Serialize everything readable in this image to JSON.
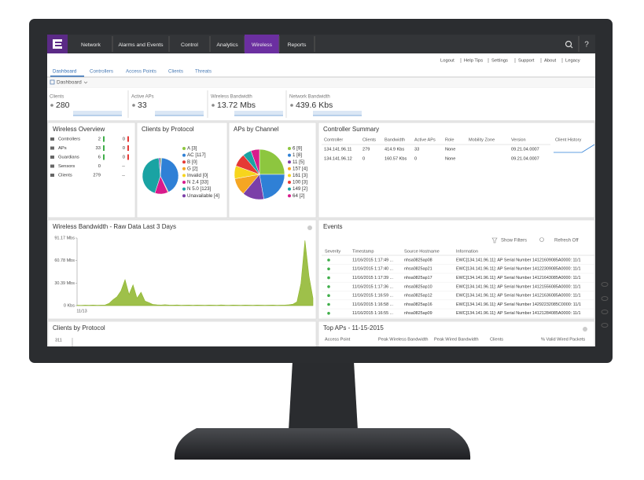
{
  "nav": {
    "items": [
      "Network",
      "Alarms and Events",
      "Control",
      "Analytics",
      "Wireless",
      "Reports"
    ],
    "active": 4,
    "help": "?"
  },
  "links": [
    "Logout",
    "Help Tips",
    "Settings",
    "Support",
    "About",
    "Legacy"
  ],
  "tabs": [
    "Dashboard",
    "Controllers",
    "Access Points",
    "Clients",
    "Threats"
  ],
  "view": "Dashboard",
  "stats": [
    {
      "label": "Clients",
      "value": "280"
    },
    {
      "label": "Active APs",
      "value": "33"
    },
    {
      "label": "Wireless Bandwidth",
      "value": "13.72 Mbs"
    },
    {
      "label": "Network Bandwidth",
      "value": "439.6 Kbs"
    }
  ],
  "wireless_overview": {
    "title": "Wireless Overview",
    "rows": [
      [
        "Controllers",
        "2",
        "0"
      ],
      [
        "APs",
        "33",
        "0"
      ],
      [
        "Guardians",
        "6",
        "0"
      ],
      [
        "Sensors",
        "0",
        "--"
      ],
      [
        "Clients",
        "279",
        "--"
      ]
    ]
  },
  "clients_pie": {
    "title": "Clients by Protocol",
    "slices": [
      {
        "label": "A [3]",
        "value": 3,
        "color": "#8dc63f"
      },
      {
        "label": "AC [117]",
        "value": 117,
        "color": "#2f80d6"
      },
      {
        "label": "B [0]",
        "value": 0,
        "color": "#e53935"
      },
      {
        "label": "G [2]",
        "value": 2,
        "color": "#f5a623"
      },
      {
        "label": "Invalid [0]",
        "value": 0,
        "color": "#f7d51d"
      },
      {
        "label": "N 2.4 [33]",
        "value": 33,
        "color": "#d81b8c"
      },
      {
        "label": "N 5.0 [123]",
        "value": 123,
        "color": "#1aa3a3"
      },
      {
        "label": "Unavailable [4]",
        "value": 4,
        "color": "#7b3fa8"
      }
    ]
  },
  "channels_pie": {
    "title": "APs by Channel",
    "slices": [
      {
        "label": "6 [9]",
        "value": 9,
        "color": "#8dc63f"
      },
      {
        "label": "1 [8]",
        "value": 8,
        "color": "#2f80d6"
      },
      {
        "label": "11 [5]",
        "value": 5,
        "color": "#7b3fa8"
      },
      {
        "label": "157 [4]",
        "value": 4,
        "color": "#f5a623"
      },
      {
        "label": "161 [3]",
        "value": 3,
        "color": "#f7d51d"
      },
      {
        "label": "100 [3]",
        "value": 3,
        "color": "#e53935"
      },
      {
        "label": "149 [2]",
        "value": 2,
        "color": "#1aa3a3"
      },
      {
        "label": "64 [2]",
        "value": 2,
        "color": "#d81b8c"
      }
    ]
  },
  "controller_summary": {
    "title": "Controller Summary",
    "headers": [
      "Controller",
      "Clients",
      "Bandwidth",
      "Active APs",
      "Role",
      "Mobility Zone",
      "Version",
      "Client History"
    ],
    "rows": [
      [
        "134.141.96.11",
        "279",
        "414.9 Kbs",
        "33",
        "None",
        null,
        "09.21.04.0007"
      ],
      [
        "134.141.96.12",
        "0",
        "160.57 Kbs",
        "0",
        "None",
        null,
        "09.21.04.0007"
      ]
    ]
  },
  "chart_data": {
    "type": "area",
    "title": "Wireless Bandwidth - Raw Data Last 3 Days",
    "color": "#8db52a",
    "x_label": "11/13",
    "values": [
      0.5,
      0.4,
      0.6,
      0.5,
      0.7,
      0.5,
      0.6,
      0.8,
      3,
      8,
      12,
      20,
      35,
      15,
      28,
      10,
      18,
      6,
      4,
      1.5,
      1,
      0.8,
      1.2,
      0.7,
      0.6,
      0.9,
      0.5,
      0.6,
      0.7,
      0.5,
      0.8,
      0.6,
      0.5,
      0.7,
      0.6,
      0.5,
      0.9,
      0.6,
      0.5,
      0.7,
      0.6,
      0.5,
      0.8,
      0.6,
      0.5,
      0.7,
      0.6,
      0.5,
      0.6,
      0.7,
      0.5,
      0.6,
      0.8,
      1.2,
      2,
      5,
      30,
      88,
      40,
      10
    ],
    "ylim": [
      0,
      91.17
    ],
    "yticks": [
      {
        "value": 91.17,
        "label": "91.17 Mbs"
      },
      {
        "value": 60.78,
        "label": "60.78 Mbs"
      },
      {
        "value": 30.39,
        "label": "30.39 Mbs"
      },
      {
        "value": 0,
        "label": "0 Kbs"
      }
    ]
  },
  "events": {
    "title": "Events",
    "show_filters": "Show Filters",
    "refresh": "Refresh Off",
    "headers": [
      "Severity",
      "Timestamp",
      "Source Hostname",
      "Information"
    ],
    "rows": [
      [
        "11/16/2015 1:17:49 ...",
        "nhsa0825ap08",
        "EWC[134.141.96.11]: AP Serial Number 14121609085A0000: 11/1"
      ],
      [
        "11/16/2015 1:17:40 ...",
        "nhsa0825ap21",
        "EWC[134.141.96.11]: AP Serial Number 14122309085A0000: 11/1"
      ],
      [
        "11/16/2015 1:17:39 ...",
        "nhsa0825ap17",
        "EWC[134.141.96.11]: AP Serial Number 14121643085A0000: 11/1"
      ],
      [
        "11/16/2015 1:17:36 ...",
        "nhsa0825ap10",
        "EWC[134.141.96.11]: AP Serial Number 14121556085A0000: 11/1"
      ],
      [
        "11/16/2015 1:16:59 ...",
        "nhsa0825ap12",
        "EWC[134.141.96.11]: AP Serial Number 14121636085A0000: 11/1"
      ],
      [
        "11/16/2015 1:16:58 ...",
        "nhsa0825ap16",
        "EWC[134.141.96.11]: AP Serial Number 14292232085C0000: 11/1"
      ],
      [
        "11/16/2015 1:16:55 ...",
        "nhsa0825ap09",
        "EWC[134.141.96.11]: AP Serial Number 14121284085A0000: 11/1"
      ]
    ]
  },
  "bottom_left": {
    "title": "Clients by Protocol",
    "tick": "311"
  },
  "top_aps": {
    "title": "Top APs - 11-15-2015",
    "headers": [
      "Access Point",
      "Peak Wireless Bandwidth",
      "Peak Wired Bandwidth",
      "Clients",
      "% Valid Wired Packets"
    ]
  }
}
